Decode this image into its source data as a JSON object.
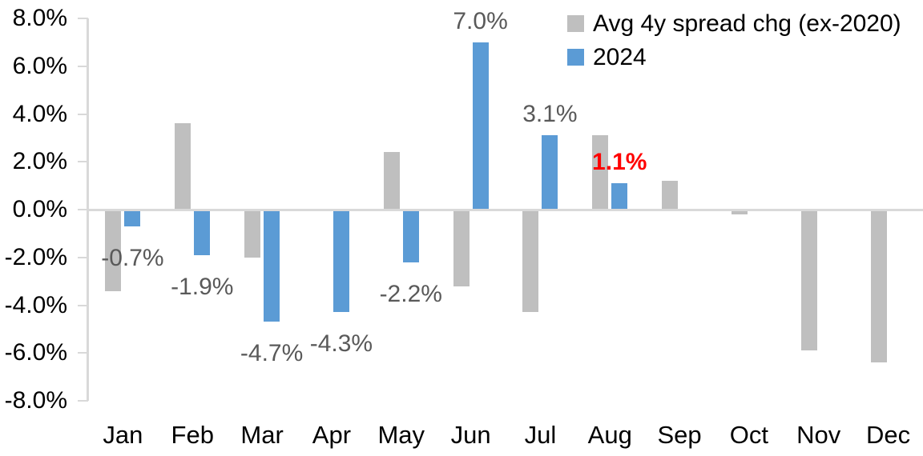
{
  "chart_data": {
    "type": "bar",
    "title": "",
    "xlabel": "",
    "ylabel": "",
    "categories": [
      "Jan",
      "Feb",
      "Mar",
      "Apr",
      "May",
      "Jun",
      "Jul",
      "Aug",
      "Sep",
      "Oct",
      "Nov",
      "Dec"
    ],
    "series": [
      {
        "name": "Avg 4y spread chg (ex-2020)",
        "color": "#bfbfbf",
        "values": [
          -3.4,
          3.6,
          -2.0,
          0.0,
          2.4,
          -3.2,
          -4.3,
          3.1,
          1.2,
          -0.2,
          -5.9,
          -6.4
        ]
      },
      {
        "name": "2024",
        "color": "#5b9bd5",
        "values": [
          -0.7,
          -1.9,
          -4.7,
          -4.3,
          -2.2,
          7.0,
          3.1,
          1.1,
          null,
          null,
          null,
          null
        ]
      }
    ],
    "data_labels": [
      {
        "text": "-0.7%",
        "month_index": 0,
        "series": "2024",
        "color": "#595959",
        "bold": false
      },
      {
        "text": "-1.9%",
        "month_index": 1,
        "series": "2024",
        "color": "#595959",
        "bold": false
      },
      {
        "text": "-4.7%",
        "month_index": 2,
        "series": "2024",
        "color": "#595959",
        "bold": false
      },
      {
        "text": "-4.3%",
        "month_index": 3,
        "series": "2024",
        "color": "#595959",
        "bold": false
      },
      {
        "text": "-2.2%",
        "month_index": 4,
        "series": "2024",
        "color": "#595959",
        "bold": false
      },
      {
        "text": "7.0%",
        "month_index": 5,
        "series": "2024",
        "color": "#595959",
        "bold": false
      },
      {
        "text": "3.1%",
        "month_index": 6,
        "series": "2024",
        "color": "#595959",
        "bold": false
      },
      {
        "text": "1.1%",
        "month_index": 7,
        "series": "2024",
        "color": "#ff0000",
        "bold": true
      }
    ],
    "y_axis": {
      "min": -8,
      "max": 8,
      "ticks": [
        {
          "label": "8.0%",
          "value": 8
        },
        {
          "label": "6.0%",
          "value": 6
        },
        {
          "label": "4.0%",
          "value": 4
        },
        {
          "label": "2.0%",
          "value": 2
        },
        {
          "label": "0.0%",
          "value": 0
        },
        {
          "label": "-2.0%",
          "value": -2
        },
        {
          "label": "-4.0%",
          "value": -4
        },
        {
          "label": "-6.0%",
          "value": -6
        },
        {
          "label": "-8.0%",
          "value": -8
        }
      ]
    },
    "grid": false,
    "legend_position": "top-right",
    "axis_color": "#d9d9d9"
  }
}
